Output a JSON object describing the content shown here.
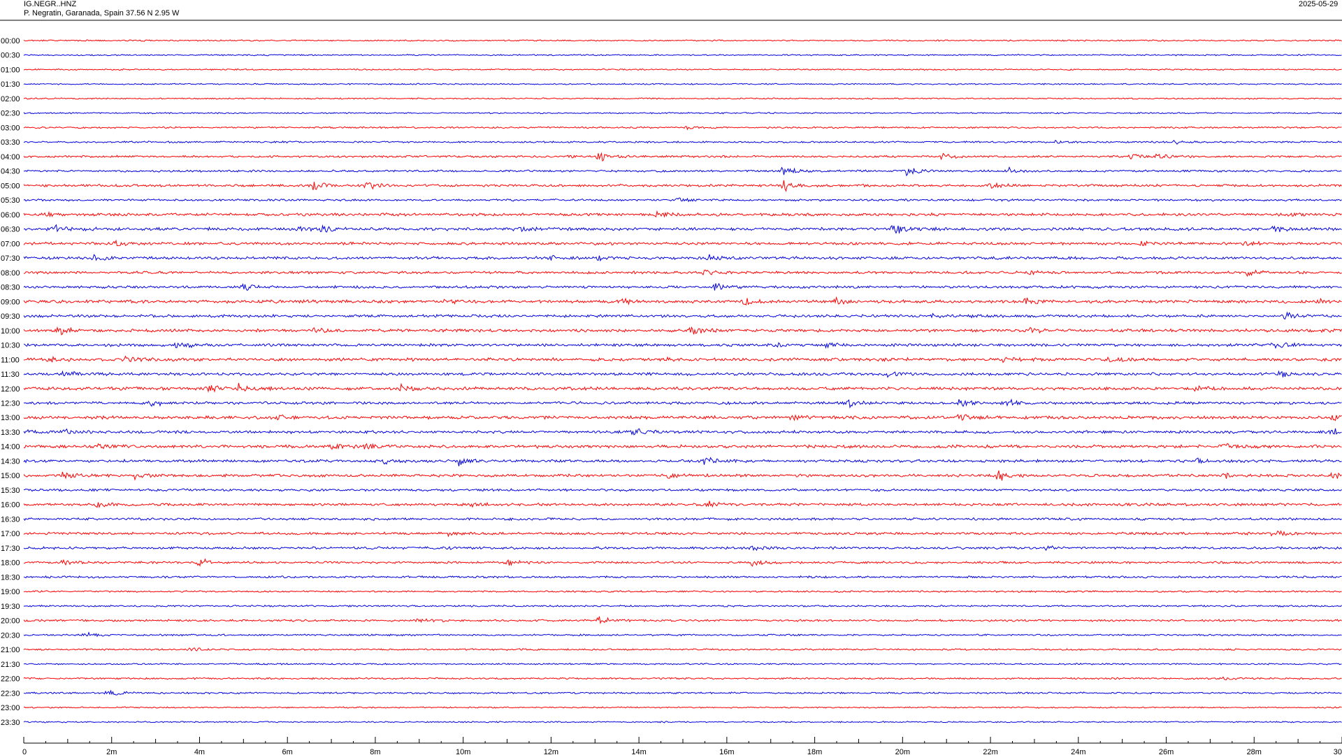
{
  "header": {
    "station": "IG.NEGR..HNZ",
    "location": "P. Negratin, Garanada, Spain  37.56 N 2.95 W",
    "date": "2025-05-29"
  },
  "colors": {
    "even_row": "#ff0000",
    "odd_row": "#0000dd",
    "axis": "#000000",
    "background": "#ffffff"
  },
  "chart_data": {
    "type": "helicorder",
    "row_interval_minutes": 30,
    "x_range_minutes": [
      0,
      30
    ],
    "row_labels": [
      "00:00",
      "00:30",
      "01:00",
      "01:30",
      "02:00",
      "02:30",
      "03:00",
      "03:30",
      "04:00",
      "04:30",
      "05:00",
      "05:30",
      "06:00",
      "06:30",
      "07:00",
      "07:30",
      "08:00",
      "08:30",
      "09:00",
      "09:30",
      "10:00",
      "10:30",
      "11:00",
      "11:30",
      "12:00",
      "12:30",
      "13:00",
      "13:30",
      "14:00",
      "14:30",
      "15:00",
      "15:30",
      "16:00",
      "16:30",
      "17:00",
      "17:30",
      "18:00",
      "18:30",
      "19:00",
      "19:30",
      "20:00",
      "20:30",
      "21:00",
      "21:30",
      "22:00",
      "22:30",
      "23:00",
      "23:30"
    ],
    "x_ticks": [
      "0",
      "2m",
      "4m",
      "6m",
      "8m",
      "10m",
      "12m",
      "14m",
      "16m",
      "18m",
      "20m",
      "22m",
      "24m",
      "26m",
      "28m",
      "30"
    ],
    "noise_level": [
      0.8,
      0.8,
      0.8,
      0.8,
      0.8,
      0.8,
      1.0,
      1.0,
      1.2,
      1.2,
      1.4,
      1.2,
      1.6,
      1.8,
      1.6,
      1.6,
      1.5,
      1.5,
      1.8,
      1.6,
      1.8,
      1.6,
      1.8,
      1.6,
      1.8,
      1.6,
      1.8,
      1.6,
      1.8,
      1.6,
      1.6,
      1.4,
      1.5,
      1.4,
      1.5,
      1.4,
      1.3,
      1.2,
      1.0,
      1.0,
      1.2,
      1.0,
      1.0,
      0.9,
      1.0,
      1.0,
      0.8,
      0.8
    ],
    "events": [
      {
        "row": 6,
        "minute": 15.1,
        "amp": 3
      },
      {
        "row": 7,
        "minute": 23.5,
        "amp": 3
      },
      {
        "row": 7,
        "minute": 26.2,
        "amp": 5
      },
      {
        "row": 8,
        "minute": 13.1,
        "amp": 9
      },
      {
        "row": 8,
        "minute": 20.9,
        "amp": 6
      },
      {
        "row": 8,
        "minute": 25.2,
        "amp": 4
      },
      {
        "row": 8,
        "minute": 25.8,
        "amp": 5
      },
      {
        "row": 8,
        "minute": 12.4,
        "amp": 2
      },
      {
        "row": 9,
        "minute": 17.3,
        "amp": 8
      },
      {
        "row": 9,
        "minute": 20.1,
        "amp": 9
      },
      {
        "row": 9,
        "minute": 22.4,
        "amp": 5
      },
      {
        "row": 10,
        "minute": 6.6,
        "amp": 8
      },
      {
        "row": 10,
        "minute": 7.8,
        "amp": 8
      },
      {
        "row": 10,
        "minute": 17.3,
        "amp": 9
      },
      {
        "row": 10,
        "minute": 22.0,
        "amp": 5
      },
      {
        "row": 11,
        "minute": 14.9,
        "amp": 3
      },
      {
        "row": 12,
        "minute": 0.5,
        "amp": 3
      },
      {
        "row": 12,
        "minute": 14.4,
        "amp": 4
      },
      {
        "row": 12,
        "minute": 28.8,
        "amp": 3
      },
      {
        "row": 12,
        "minute": 8.2,
        "amp": 2
      },
      {
        "row": 13,
        "minute": 0.7,
        "amp": 5
      },
      {
        "row": 13,
        "minute": 6.8,
        "amp": 6
      },
      {
        "row": 13,
        "minute": 6.3,
        "amp": 3
      },
      {
        "row": 13,
        "minute": 11.3,
        "amp": 3
      },
      {
        "row": 13,
        "minute": 19.8,
        "amp": 9
      },
      {
        "row": 13,
        "minute": 28.4,
        "amp": 5
      },
      {
        "row": 14,
        "minute": 2.1,
        "amp": 5
      },
      {
        "row": 14,
        "minute": 25.4,
        "amp": 3
      },
      {
        "row": 14,
        "minute": 27.8,
        "amp": 5
      },
      {
        "row": 15,
        "minute": 1.6,
        "amp": 5
      },
      {
        "row": 15,
        "minute": 12.0,
        "amp": 5
      },
      {
        "row": 15,
        "minute": 13.1,
        "amp": 6
      },
      {
        "row": 15,
        "minute": 15.6,
        "amp": 5
      },
      {
        "row": 16,
        "minute": 15.5,
        "amp": 5
      },
      {
        "row": 16,
        "minute": 22.9,
        "amp": 3
      },
      {
        "row": 16,
        "minute": 27.8,
        "amp": 5
      },
      {
        "row": 17,
        "minute": 5.0,
        "amp": 6
      },
      {
        "row": 17,
        "minute": 15.7,
        "amp": 7
      },
      {
        "row": 18,
        "minute": 9.6,
        "amp": 4
      },
      {
        "row": 18,
        "minute": 13.6,
        "amp": 5
      },
      {
        "row": 18,
        "minute": 16.4,
        "amp": 7
      },
      {
        "row": 18,
        "minute": 18.5,
        "amp": 5
      },
      {
        "row": 18,
        "minute": 22.8,
        "amp": 6
      },
      {
        "row": 18,
        "minute": 29.5,
        "amp": 3
      },
      {
        "row": 19,
        "minute": 20.7,
        "amp": 5
      },
      {
        "row": 19,
        "minute": 21.6,
        "amp": 3
      },
      {
        "row": 19,
        "minute": 28.7,
        "amp": 6
      },
      {
        "row": 20,
        "minute": 0.8,
        "amp": 6
      },
      {
        "row": 20,
        "minute": 6.6,
        "amp": 5
      },
      {
        "row": 20,
        "minute": 15.2,
        "amp": 6
      },
      {
        "row": 20,
        "minute": 22.9,
        "amp": 4
      },
      {
        "row": 20,
        "minute": 29.6,
        "amp": 3
      },
      {
        "row": 21,
        "minute": 3.5,
        "amp": 8
      },
      {
        "row": 21,
        "minute": 17.0,
        "amp": 4
      },
      {
        "row": 21,
        "minute": 18.3,
        "amp": 5
      },
      {
        "row": 21,
        "minute": 28.4,
        "amp": 7
      },
      {
        "row": 22,
        "minute": 0.6,
        "amp": 6
      },
      {
        "row": 22,
        "minute": 2.3,
        "amp": 6
      },
      {
        "row": 22,
        "minute": 14.6,
        "amp": 3
      },
      {
        "row": 22,
        "minute": 24.7,
        "amp": 6
      },
      {
        "row": 22,
        "minute": 22.3,
        "amp": 3
      },
      {
        "row": 23,
        "minute": 0.9,
        "amp": 5
      },
      {
        "row": 23,
        "minute": 19.6,
        "amp": 5
      },
      {
        "row": 23,
        "minute": 28.6,
        "amp": 5
      },
      {
        "row": 24,
        "minute": 4.2,
        "amp": 6
      },
      {
        "row": 24,
        "minute": 4.9,
        "amp": 8
      },
      {
        "row": 24,
        "minute": 8.6,
        "amp": 6
      },
      {
        "row": 24,
        "minute": 26.7,
        "amp": 5
      },
      {
        "row": 25,
        "minute": 2.9,
        "amp": 5
      },
      {
        "row": 25,
        "minute": 18.8,
        "amp": 6
      },
      {
        "row": 25,
        "minute": 21.3,
        "amp": 7
      },
      {
        "row": 25,
        "minute": 22.3,
        "amp": 7
      },
      {
        "row": 26,
        "minute": 5.7,
        "amp": 6
      },
      {
        "row": 26,
        "minute": 17.5,
        "amp": 5
      },
      {
        "row": 26,
        "minute": 21.3,
        "amp": 9
      },
      {
        "row": 26,
        "minute": 29.8,
        "amp": 4
      },
      {
        "row": 27,
        "minute": 0.0,
        "amp": 4
      },
      {
        "row": 27,
        "minute": 0.9,
        "amp": 5
      },
      {
        "row": 27,
        "minute": 13.9,
        "amp": 8
      },
      {
        "row": 27,
        "minute": 29.8,
        "amp": 6
      },
      {
        "row": 28,
        "minute": 1.7,
        "amp": 5
      },
      {
        "row": 28,
        "minute": 7.0,
        "amp": 6
      },
      {
        "row": 28,
        "minute": 7.8,
        "amp": 6
      },
      {
        "row": 28,
        "minute": 27.3,
        "amp": 5
      },
      {
        "row": 29,
        "minute": 8.2,
        "amp": 4
      },
      {
        "row": 29,
        "minute": 9.9,
        "amp": 6
      },
      {
        "row": 29,
        "minute": 15.5,
        "amp": 5
      },
      {
        "row": 29,
        "minute": 26.7,
        "amp": 5
      },
      {
        "row": 30,
        "minute": 0.9,
        "amp": 5
      },
      {
        "row": 30,
        "minute": 2.5,
        "amp": 6
      },
      {
        "row": 30,
        "minute": 14.7,
        "amp": 6
      },
      {
        "row": 30,
        "minute": 22.2,
        "amp": 12
      },
      {
        "row": 30,
        "minute": 27.3,
        "amp": 4
      },
      {
        "row": 30,
        "minute": 29.8,
        "amp": 5
      },
      {
        "row": 32,
        "minute": 1.7,
        "amp": 5
      },
      {
        "row": 32,
        "minute": 10.2,
        "amp": 5
      },
      {
        "row": 32,
        "minute": 15.5,
        "amp": 7
      },
      {
        "row": 34,
        "minute": 9.6,
        "amp": 5
      },
      {
        "row": 34,
        "minute": 28.4,
        "amp": 6
      },
      {
        "row": 35,
        "minute": 9.6,
        "amp": 3
      },
      {
        "row": 35,
        "minute": 16.6,
        "amp": 4
      },
      {
        "row": 35,
        "minute": 23.3,
        "amp": 5
      },
      {
        "row": 36,
        "minute": 0.9,
        "amp": 5
      },
      {
        "row": 36,
        "minute": 4.0,
        "amp": 7
      },
      {
        "row": 36,
        "minute": 11.0,
        "amp": 6
      },
      {
        "row": 36,
        "minute": 16.6,
        "amp": 6
      },
      {
        "row": 40,
        "minute": 9.0,
        "amp": 5
      },
      {
        "row": 40,
        "minute": 13.1,
        "amp": 7
      },
      {
        "row": 41,
        "minute": 1.4,
        "amp": 5
      },
      {
        "row": 42,
        "minute": 3.8,
        "amp": 3
      },
      {
        "row": 44,
        "minute": 27.3,
        "amp": 2
      },
      {
        "row": 45,
        "minute": 1.9,
        "amp": 6
      }
    ]
  }
}
